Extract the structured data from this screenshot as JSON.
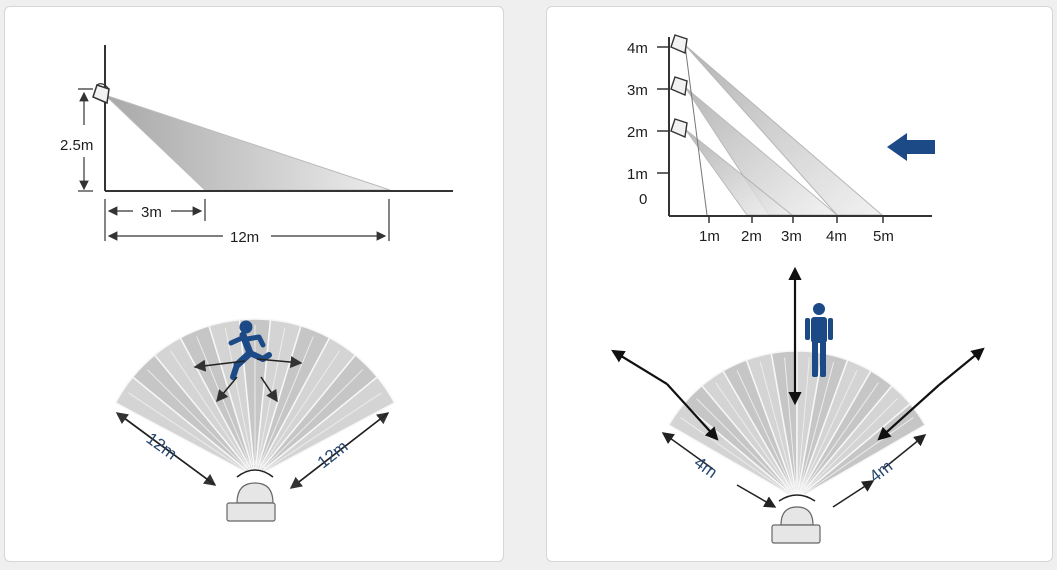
{
  "colors": {
    "accent_blue": "#1c4a86",
    "label_blue": "#27466e",
    "line": "#333333",
    "fan_fill": "#d9d9d9",
    "beam_fill": "#c4c4c4"
  },
  "left_panel": {
    "side_view": {
      "height_label": "2.5m",
      "near_distance_label": "3m",
      "far_distance_label": "12m"
    },
    "top_view": {
      "left_range_label": "12m",
      "right_range_label": "12m",
      "figure_icon": "running-person-icon"
    }
  },
  "right_panel": {
    "side_view": {
      "y_ticks": [
        "4m",
        "3m",
        "2m",
        "1m",
        "0"
      ],
      "x_ticks": [
        "1m",
        "2m",
        "3m",
        "4m",
        "5m"
      ],
      "direction_icon": "arrow-left-icon"
    },
    "top_view": {
      "left_range_label": "4m",
      "right_range_label": "4m",
      "figure_icon": "standing-person-icon"
    }
  }
}
